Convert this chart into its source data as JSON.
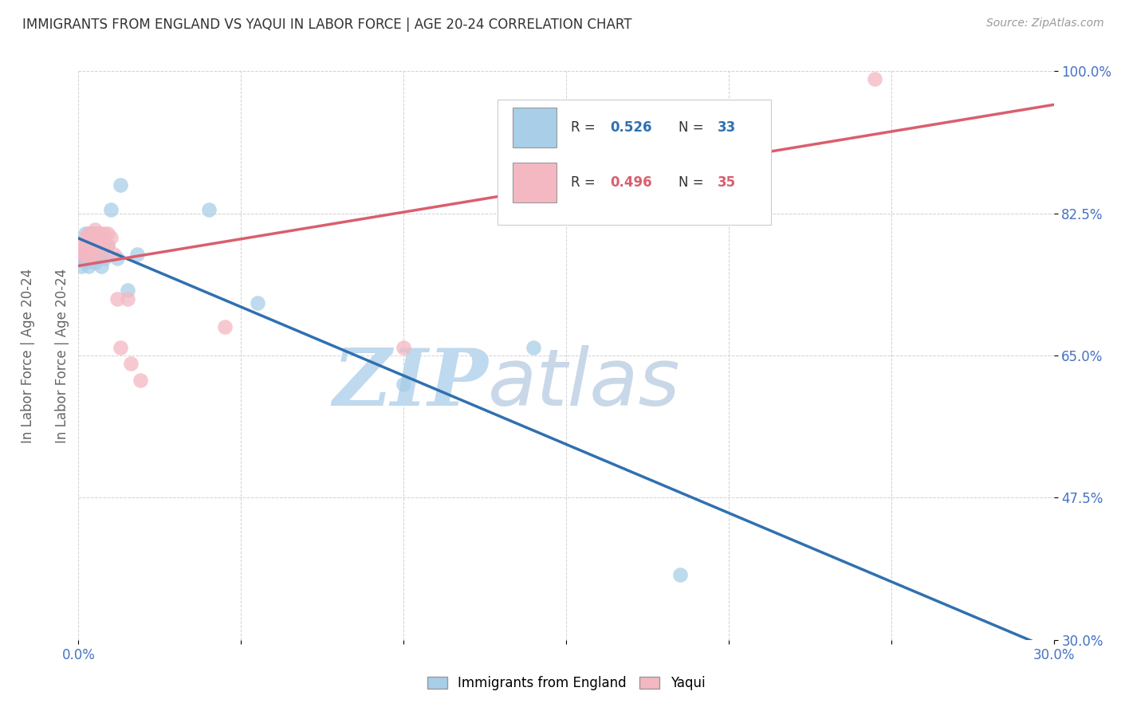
{
  "title": "IMMIGRANTS FROM ENGLAND VS YAQUI IN LABOR FORCE | AGE 20-24 CORRELATION CHART",
  "source": "Source: ZipAtlas.com",
  "ylabel": "In Labor Force | Age 20-24",
  "xlim": [
    0.0,
    0.3
  ],
  "ylim": [
    0.3,
    1.0
  ],
  "xticks": [
    0.0,
    0.05,
    0.1,
    0.15,
    0.2,
    0.25,
    0.3
  ],
  "xtick_labels": [
    "0.0%",
    "",
    "",
    "",
    "",
    "",
    "30.0%"
  ],
  "yticks": [
    0.3,
    0.475,
    0.65,
    0.825,
    1.0
  ],
  "ytick_labels": [
    "30.0%",
    "47.5%",
    "65.0%",
    "82.5%",
    "100.0%"
  ],
  "england_R": 0.526,
  "england_N": 33,
  "yaqui_R": 0.496,
  "yaqui_N": 35,
  "england_color": "#A8CEE8",
  "yaqui_color": "#F4B8C2",
  "england_line_color": "#3070B0",
  "yaqui_line_color": "#D95F6E",
  "england_x": [
    0.001,
    0.001,
    0.001,
    0.002,
    0.002,
    0.002,
    0.002,
    0.003,
    0.003,
    0.003,
    0.003,
    0.004,
    0.004,
    0.004,
    0.005,
    0.005,
    0.005,
    0.006,
    0.006,
    0.007,
    0.007,
    0.008,
    0.009,
    0.01,
    0.012,
    0.013,
    0.015,
    0.018,
    0.04,
    0.055,
    0.1,
    0.14,
    0.185
  ],
  "england_y": [
    0.775,
    0.77,
    0.76,
    0.8,
    0.785,
    0.775,
    0.765,
    0.8,
    0.775,
    0.77,
    0.76,
    0.8,
    0.785,
    0.77,
    0.8,
    0.78,
    0.765,
    0.8,
    0.77,
    0.775,
    0.76,
    0.77,
    0.785,
    0.83,
    0.77,
    0.86,
    0.73,
    0.775,
    0.83,
    0.715,
    0.615,
    0.66,
    0.38
  ],
  "yaqui_x": [
    0.001,
    0.001,
    0.002,
    0.002,
    0.002,
    0.003,
    0.003,
    0.003,
    0.003,
    0.004,
    0.004,
    0.004,
    0.005,
    0.005,
    0.005,
    0.006,
    0.006,
    0.007,
    0.007,
    0.007,
    0.008,
    0.008,
    0.009,
    0.009,
    0.01,
    0.011,
    0.012,
    0.013,
    0.015,
    0.016,
    0.019,
    0.045,
    0.1,
    0.145,
    0.245
  ],
  "yaqui_y": [
    0.785,
    0.775,
    0.795,
    0.785,
    0.775,
    0.8,
    0.79,
    0.78,
    0.77,
    0.8,
    0.79,
    0.775,
    0.805,
    0.795,
    0.78,
    0.8,
    0.785,
    0.8,
    0.79,
    0.775,
    0.8,
    0.785,
    0.8,
    0.785,
    0.795,
    0.775,
    0.72,
    0.66,
    0.72,
    0.64,
    0.62,
    0.685,
    0.66,
    0.92,
    0.99
  ],
  "watermark_zip": "ZIP",
  "watermark_atlas": "atlas",
  "watermark_color_zip": "#BFD9EE",
  "watermark_color_atlas": "#C8D8E8",
  "legend_box_color_england": "#A8CEE8",
  "legend_box_color_yaqui": "#F4B8C2",
  "axis_tick_color": "#4472C4",
  "title_color": "#333333",
  "grid_color": "#CCCCCC",
  "background_color": "#FFFFFF"
}
